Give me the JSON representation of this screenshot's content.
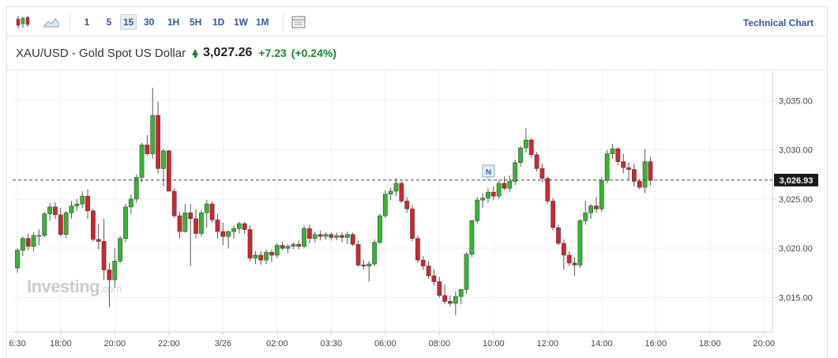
{
  "toolbar": {
    "icons": [
      "candlestick-icon",
      "area-chart-icon",
      "layout-icon"
    ],
    "intervals": [
      "1",
      "5",
      "15",
      "30",
      "1H",
      "5H",
      "1D",
      "1W",
      "1M"
    ],
    "active_interval": "15",
    "technical_chart_label": "Technical Chart"
  },
  "header": {
    "instrument": "XAU/USD - Gold Spot US Dollar",
    "price": "3,027.26",
    "change": "+7.23",
    "change_pct": "(+0.24%)",
    "direction": "up"
  },
  "watermark": {
    "brand": "Investing",
    "suffix": ".com"
  },
  "colors": {
    "up": "#32b82f",
    "down": "#d4242b",
    "up_text": "#0e8a2a",
    "link": "#2a5b9c",
    "price_tag": "#1a1a1a"
  },
  "chart_data": {
    "type": "candlestick",
    "y_ticks": [
      "3,035.00",
      "3,030.00",
      "3,025.00",
      "3,020.00",
      "3,015.00"
    ],
    "y_tick_values": [
      3035,
      3030,
      3025,
      3020,
      3015
    ],
    "ylim": [
      3011.5,
      3038.0
    ],
    "x_ticks": [
      "6:30",
      "18:00",
      "20:00",
      "22:00",
      "3/26",
      "02:00",
      "03:30",
      "06:00",
      "08:00",
      "10:00",
      "12:00",
      "14:00",
      "16:00",
      "18:00",
      "20:00"
    ],
    "x_tick_index": [
      0,
      8,
      18,
      28,
      38,
      48,
      58,
      68,
      78,
      88,
      98,
      108,
      118,
      128,
      138
    ],
    "current_price_label": "3,026.93",
    "current_price": 3026.93,
    "event_marker": {
      "label": "N",
      "index": 87
    },
    "candles": [
      [
        3018.0,
        3020.0,
        3017.5,
        3019.8
      ],
      [
        3019.8,
        3021.2,
        3019.2,
        3021.0
      ],
      [
        3021.0,
        3021.5,
        3019.8,
        3020.2
      ],
      [
        3020.2,
        3021.6,
        3019.7,
        3021.3
      ],
      [
        3021.3,
        3021.9,
        3020.3,
        3021.3
      ],
      [
        3021.3,
        3023.7,
        3021.1,
        3023.5
      ],
      [
        3023.5,
        3024.6,
        3022.8,
        3024.2
      ],
      [
        3024.2,
        3024.7,
        3023.0,
        3023.4
      ],
      [
        3023.4,
        3024.1,
        3021.2,
        3021.4
      ],
      [
        3021.4,
        3023.8,
        3021.0,
        3023.6
      ],
      [
        3023.6,
        3024.8,
        3023.0,
        3024.3
      ],
      [
        3024.3,
        3025.0,
        3023.8,
        3024.5
      ],
      [
        3024.5,
        3025.8,
        3024.1,
        3025.3
      ],
      [
        3025.3,
        3026.0,
        3023.0,
        3023.8
      ],
      [
        3023.8,
        3024.0,
        3020.7,
        3020.9
      ],
      [
        3020.9,
        3022.5,
        3019.9,
        3020.7
      ],
      [
        3020.7,
        3023.0,
        3016.8,
        3017.8
      ],
      [
        3017.8,
        3018.5,
        3014.0,
        3016.8
      ],
      [
        3016.8,
        3020.0,
        3016.0,
        3018.7
      ],
      [
        3018.7,
        3021.2,
        3018.5,
        3021.0
      ],
      [
        3021.0,
        3024.5,
        3020.6,
        3024.2
      ],
      [
        3024.2,
        3025.5,
        3023.5,
        3025.0
      ],
      [
        3025.0,
        3027.5,
        3024.6,
        3027.2
      ],
      [
        3027.2,
        3030.7,
        3026.7,
        3030.5
      ],
      [
        3030.5,
        3031.5,
        3029.4,
        3029.6
      ],
      [
        3029.6,
        3036.3,
        3029.1,
        3033.5
      ],
      [
        3033.5,
        3034.9,
        3027.6,
        3028.1
      ],
      [
        3028.1,
        3030.1,
        3026.3,
        3029.9
      ],
      [
        3029.9,
        3030.0,
        3025.8,
        3025.8
      ],
      [
        3025.8,
        3026.1,
        3023.1,
        3023.3
      ],
      [
        3023.3,
        3023.7,
        3021.0,
        3021.7
      ],
      [
        3021.7,
        3024.5,
        3021.6,
        3023.6
      ],
      [
        3023.6,
        3024.5,
        3018.2,
        3023.0
      ],
      [
        3023.0,
        3024.0,
        3021.0,
        3021.5
      ],
      [
        3021.5,
        3023.9,
        3021.2,
        3023.6
      ],
      [
        3023.6,
        3024.9,
        3022.1,
        3024.5
      ],
      [
        3024.5,
        3024.8,
        3022.6,
        3022.9
      ],
      [
        3022.9,
        3023.5,
        3021.0,
        3021.7
      ],
      [
        3021.7,
        3022.6,
        3020.3,
        3021.2
      ],
      [
        3021.2,
        3021.8,
        3020.0,
        3021.7
      ],
      [
        3021.7,
        3022.3,
        3021.0,
        3022.0
      ],
      [
        3022.0,
        3022.7,
        3021.5,
        3022.5
      ],
      [
        3022.5,
        3022.7,
        3021.5,
        3021.9
      ],
      [
        3021.9,
        3022.3,
        3018.7,
        3019.0
      ],
      [
        3019.0,
        3019.7,
        3018.4,
        3019.3
      ],
      [
        3019.3,
        3019.7,
        3018.3,
        3018.8
      ],
      [
        3018.8,
        3019.9,
        3018.4,
        3019.6
      ],
      [
        3019.6,
        3019.9,
        3018.6,
        3019.3
      ],
      [
        3019.3,
        3020.5,
        3019.0,
        3020.3
      ],
      [
        3020.3,
        3020.7,
        3019.8,
        3020.0
      ],
      [
        3020.0,
        3020.4,
        3019.5,
        3020.2
      ],
      [
        3020.2,
        3020.6,
        3019.9,
        3020.4
      ],
      [
        3020.4,
        3020.8,
        3019.9,
        3020.2
      ],
      [
        3020.2,
        3022.3,
        3020.0,
        3022.0
      ],
      [
        3022.0,
        3022.4,
        3020.5,
        3021.0
      ],
      [
        3021.0,
        3021.7,
        3020.6,
        3021.4
      ],
      [
        3021.4,
        3021.8,
        3020.8,
        3021.2
      ],
      [
        3021.2,
        3021.6,
        3020.9,
        3021.4
      ],
      [
        3021.4,
        3021.6,
        3020.8,
        3021.1
      ],
      [
        3021.1,
        3021.6,
        3020.8,
        3021.3
      ],
      [
        3021.3,
        3021.6,
        3020.6,
        3021.1
      ],
      [
        3021.1,
        3021.7,
        3020.4,
        3021.4
      ],
      [
        3021.4,
        3021.6,
        3020.2,
        3020.4
      ],
      [
        3020.4,
        3020.8,
        3018.1,
        3018.3
      ],
      [
        3018.3,
        3018.8,
        3017.8,
        3018.2
      ],
      [
        3018.2,
        3018.7,
        3016.6,
        3018.4
      ],
      [
        3018.4,
        3020.9,
        3018.2,
        3020.6
      ],
      [
        3020.6,
        3023.5,
        3020.4,
        3023.3
      ],
      [
        3023.3,
        3025.9,
        3023.1,
        3025.5
      ],
      [
        3025.5,
        3026.2,
        3024.9,
        3025.8
      ],
      [
        3025.8,
        3027.1,
        3025.3,
        3026.6
      ],
      [
        3026.6,
        3026.8,
        3024.6,
        3024.8
      ],
      [
        3024.8,
        3025.2,
        3023.6,
        3024.0
      ],
      [
        3024.0,
        3024.4,
        3020.7,
        3021.0
      ],
      [
        3021.0,
        3021.3,
        3018.5,
        3018.8
      ],
      [
        3018.8,
        3019.2,
        3017.8,
        3018.2
      ],
      [
        3018.2,
        3018.7,
        3016.9,
        3017.2
      ],
      [
        3017.2,
        3017.9,
        3016.2,
        3016.6
      ],
      [
        3016.6,
        3017.1,
        3015.0,
        3015.2
      ],
      [
        3015.2,
        3016.3,
        3014.3,
        3014.6
      ],
      [
        3014.6,
        3015.2,
        3014.1,
        3014.4
      ],
      [
        3014.4,
        3015.6,
        3013.2,
        3015.1
      ],
      [
        3015.1,
        3015.9,
        3014.3,
        3015.8
      ],
      [
        3015.8,
        3019.6,
        3015.4,
        3019.4
      ],
      [
        3019.4,
        3022.9,
        3019.1,
        3022.8
      ],
      [
        3022.8,
        3025.2,
        3022.5,
        3024.9
      ],
      [
        3024.9,
        3025.6,
        3024.1,
        3025.1
      ],
      [
        3025.1,
        3026.1,
        3024.6,
        3025.7
      ],
      [
        3025.7,
        3026.3,
        3024.9,
        3025.3
      ],
      [
        3025.3,
        3026.9,
        3025.0,
        3026.6
      ],
      [
        3026.6,
        3027.3,
        3025.9,
        3026.1
      ],
      [
        3026.1,
        3027.4,
        3025.7,
        3026.8
      ],
      [
        3026.8,
        3029.0,
        3026.4,
        3028.7
      ],
      [
        3028.7,
        3030.4,
        3028.3,
        3030.2
      ],
      [
        3030.2,
        3032.2,
        3029.7,
        3031.0
      ],
      [
        3031.0,
        3031.2,
        3029.2,
        3029.5
      ],
      [
        3029.5,
        3029.8,
        3027.8,
        3028.1
      ],
      [
        3028.1,
        3028.6,
        3026.7,
        3027.1
      ],
      [
        3027.1,
        3027.3,
        3024.5,
        3024.8
      ],
      [
        3024.8,
        3025.1,
        3021.8,
        3022.1
      ],
      [
        3022.1,
        3022.4,
        3020.3,
        3020.5
      ],
      [
        3020.5,
        3020.9,
        3017.8,
        3019.3
      ],
      [
        3019.3,
        3019.7,
        3018.2,
        3018.5
      ],
      [
        3018.5,
        3019.1,
        3017.2,
        3018.3
      ],
      [
        3018.3,
        3023.0,
        3018.0,
        3022.8
      ],
      [
        3022.8,
        3024.8,
        3022.4,
        3023.6
      ],
      [
        3023.6,
        3024.5,
        3023.0,
        3024.3
      ],
      [
        3024.3,
        3025.2,
        3023.6,
        3024.0
      ],
      [
        3024.0,
        3027.2,
        3023.7,
        3026.9
      ],
      [
        3026.9,
        3030.0,
        3026.6,
        3029.6
      ],
      [
        3029.6,
        3030.6,
        3029.1,
        3030.1
      ],
      [
        3030.1,
        3030.3,
        3028.4,
        3028.8
      ],
      [
        3028.8,
        3029.6,
        3027.6,
        3028.2
      ],
      [
        3028.2,
        3028.7,
        3026.9,
        3028.0
      ],
      [
        3028.0,
        3028.6,
        3026.3,
        3026.8
      ],
      [
        3026.8,
        3027.0,
        3026.0,
        3026.2
      ],
      [
        3026.2,
        3030.1,
        3025.6,
        3028.8
      ],
      [
        3028.8,
        3029.3,
        3026.4,
        3026.9
      ]
    ]
  }
}
